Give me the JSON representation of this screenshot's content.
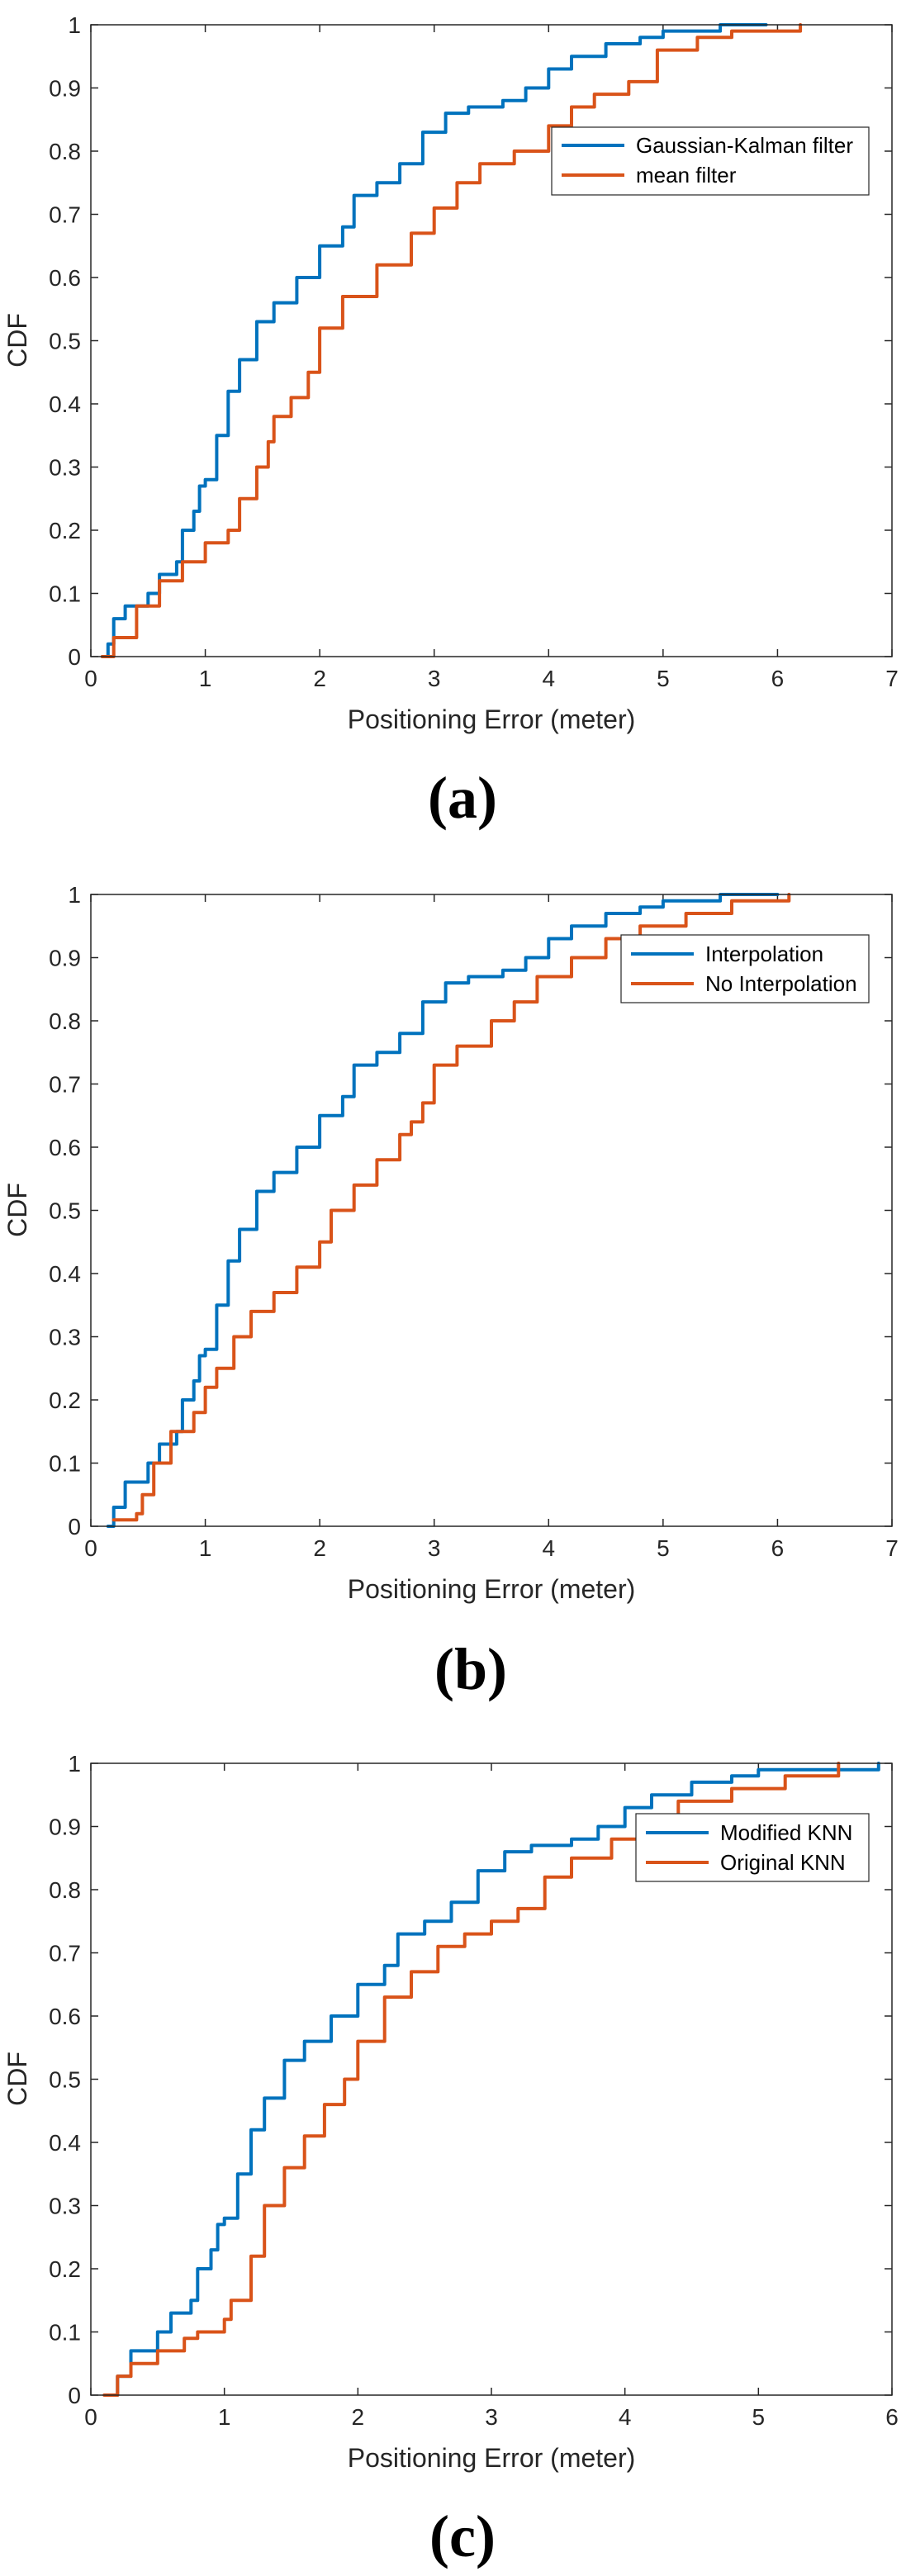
{
  "colors": {
    "series1": "#0072BD",
    "series2": "#D95319",
    "axis": "#262626"
  },
  "chart_data": [
    {
      "type": "line",
      "label": "(a)",
      "xlabel": "Positioning Error (meter)",
      "ylabel": "CDF",
      "xlim": [
        0,
        7
      ],
      "ylim": [
        0,
        1
      ],
      "xticks": [
        0,
        1,
        2,
        3,
        4,
        5,
        6,
        7
      ],
      "yticks": [
        0,
        0.1,
        0.2,
        0.3,
        0.4,
        0.5,
        0.6,
        0.7,
        0.8,
        0.9,
        1
      ],
      "legend_position": "top-right",
      "series": [
        {
          "name": "Gaussian-Kalman filter",
          "x": [
            0.1,
            0.15,
            0.2,
            0.3,
            0.5,
            0.6,
            0.75,
            0.8,
            0.9,
            0.95,
            1.0,
            1.1,
            1.2,
            1.3,
            1.45,
            1.6,
            1.8,
            2.0,
            2.2,
            2.3,
            2.5,
            2.7,
            2.9,
            3.1,
            3.3,
            3.6,
            3.8,
            4.0,
            4.2,
            4.5,
            4.8,
            5.0,
            5.5,
            5.9
          ],
          "y": [
            0,
            0.02,
            0.06,
            0.08,
            0.1,
            0.13,
            0.15,
            0.2,
            0.23,
            0.27,
            0.28,
            0.35,
            0.42,
            0.47,
            0.53,
            0.56,
            0.6,
            0.65,
            0.68,
            0.73,
            0.75,
            0.78,
            0.83,
            0.86,
            0.87,
            0.88,
            0.9,
            0.93,
            0.95,
            0.97,
            0.98,
            0.99,
            1.0,
            1.0
          ]
        },
        {
          "name": "mean filter",
          "x": [
            0.1,
            0.2,
            0.4,
            0.6,
            0.8,
            1.0,
            1.2,
            1.3,
            1.45,
            1.55,
            1.6,
            1.75,
            1.9,
            2.0,
            2.2,
            2.5,
            2.8,
            3.0,
            3.2,
            3.4,
            3.7,
            4.0,
            4.2,
            4.4,
            4.7,
            4.95,
            5.3,
            5.6,
            6.0,
            6.2
          ],
          "y": [
            0,
            0.03,
            0.08,
            0.12,
            0.15,
            0.18,
            0.2,
            0.25,
            0.3,
            0.34,
            0.38,
            0.41,
            0.45,
            0.52,
            0.57,
            0.62,
            0.67,
            0.71,
            0.75,
            0.78,
            0.8,
            0.84,
            0.87,
            0.89,
            0.91,
            0.96,
            0.98,
            0.99,
            0.99,
            1.0
          ]
        }
      ]
    },
    {
      "type": "line",
      "label": "(b)",
      "xlabel": "Positioning Error (meter)",
      "ylabel": "CDF",
      "xlim": [
        0,
        7
      ],
      "ylim": [
        0,
        1
      ],
      "xticks": [
        0,
        1,
        2,
        3,
        4,
        5,
        6,
        7
      ],
      "yticks": [
        0,
        0.1,
        0.2,
        0.3,
        0.4,
        0.5,
        0.6,
        0.7,
        0.8,
        0.9,
        1
      ],
      "legend_position": "top-right",
      "series": [
        {
          "name": "Interpolation",
          "x": [
            0.15,
            0.2,
            0.3,
            0.5,
            0.6,
            0.75,
            0.8,
            0.9,
            0.95,
            1.0,
            1.1,
            1.2,
            1.3,
            1.45,
            1.6,
            1.8,
            2.0,
            2.2,
            2.3,
            2.5,
            2.7,
            2.9,
            3.1,
            3.3,
            3.6,
            3.8,
            4.0,
            4.2,
            4.5,
            4.8,
            5.0,
            5.5,
            6.0
          ],
          "y": [
            0,
            0.03,
            0.07,
            0.1,
            0.13,
            0.15,
            0.2,
            0.23,
            0.27,
            0.28,
            0.35,
            0.42,
            0.47,
            0.53,
            0.56,
            0.6,
            0.65,
            0.68,
            0.73,
            0.75,
            0.78,
            0.83,
            0.86,
            0.87,
            0.88,
            0.9,
            0.93,
            0.95,
            0.97,
            0.98,
            0.99,
            1.0,
            1.0
          ]
        },
        {
          "name": "No Interpolation",
          "x": [
            0.2,
            0.4,
            0.45,
            0.55,
            0.7,
            0.9,
            1.0,
            1.1,
            1.25,
            1.4,
            1.6,
            1.8,
            2.0,
            2.1,
            2.3,
            2.5,
            2.7,
            2.8,
            2.9,
            3.0,
            3.2,
            3.5,
            3.7,
            3.9,
            4.2,
            4.5,
            4.8,
            5.2,
            5.6,
            6.1
          ],
          "y": [
            0.01,
            0.02,
            0.05,
            0.1,
            0.15,
            0.18,
            0.22,
            0.25,
            0.3,
            0.34,
            0.37,
            0.41,
            0.45,
            0.5,
            0.54,
            0.58,
            0.62,
            0.64,
            0.67,
            0.73,
            0.76,
            0.8,
            0.83,
            0.87,
            0.9,
            0.93,
            0.95,
            0.97,
            0.99,
            1.0
          ]
        }
      ]
    },
    {
      "type": "line",
      "label": "(c)",
      "xlabel": "Positioning Error (meter)",
      "ylabel": "CDF",
      "xlim": [
        0,
        6
      ],
      "ylim": [
        0,
        1
      ],
      "xticks": [
        0,
        1,
        2,
        3,
        4,
        5,
        6
      ],
      "yticks": [
        0,
        0.1,
        0.2,
        0.3,
        0.4,
        0.5,
        0.6,
        0.7,
        0.8,
        0.9,
        1
      ],
      "legend_position": "top-right",
      "series": [
        {
          "name": "Modified KNN",
          "x": [
            0.15,
            0.2,
            0.3,
            0.5,
            0.6,
            0.75,
            0.8,
            0.9,
            0.95,
            1.0,
            1.1,
            1.2,
            1.3,
            1.45,
            1.6,
            1.8,
            2.0,
            2.2,
            2.3,
            2.5,
            2.7,
            2.9,
            3.1,
            3.3,
            3.6,
            3.8,
            4.0,
            4.2,
            4.5,
            4.8,
            5.0,
            5.5,
            5.9
          ],
          "y": [
            0,
            0.03,
            0.07,
            0.1,
            0.13,
            0.15,
            0.2,
            0.23,
            0.27,
            0.28,
            0.35,
            0.42,
            0.47,
            0.53,
            0.56,
            0.6,
            0.65,
            0.68,
            0.73,
            0.75,
            0.78,
            0.83,
            0.86,
            0.87,
            0.88,
            0.9,
            0.93,
            0.95,
            0.97,
            0.98,
            0.99,
            0.99,
            1.0
          ]
        },
        {
          "name": "Original KNN",
          "x": [
            0.1,
            0.2,
            0.3,
            0.5,
            0.7,
            0.8,
            1.0,
            1.05,
            1.2,
            1.3,
            1.45,
            1.6,
            1.75,
            1.9,
            2.0,
            2.2,
            2.4,
            2.6,
            2.8,
            3.0,
            3.2,
            3.4,
            3.6,
            3.9,
            4.1,
            4.4,
            4.8,
            5.2,
            5.6
          ],
          "y": [
            0,
            0.03,
            0.05,
            0.07,
            0.09,
            0.1,
            0.12,
            0.15,
            0.22,
            0.3,
            0.36,
            0.41,
            0.46,
            0.5,
            0.56,
            0.63,
            0.67,
            0.71,
            0.73,
            0.75,
            0.77,
            0.82,
            0.85,
            0.88,
            0.91,
            0.94,
            0.96,
            0.98,
            1.0
          ]
        }
      ]
    }
  ]
}
